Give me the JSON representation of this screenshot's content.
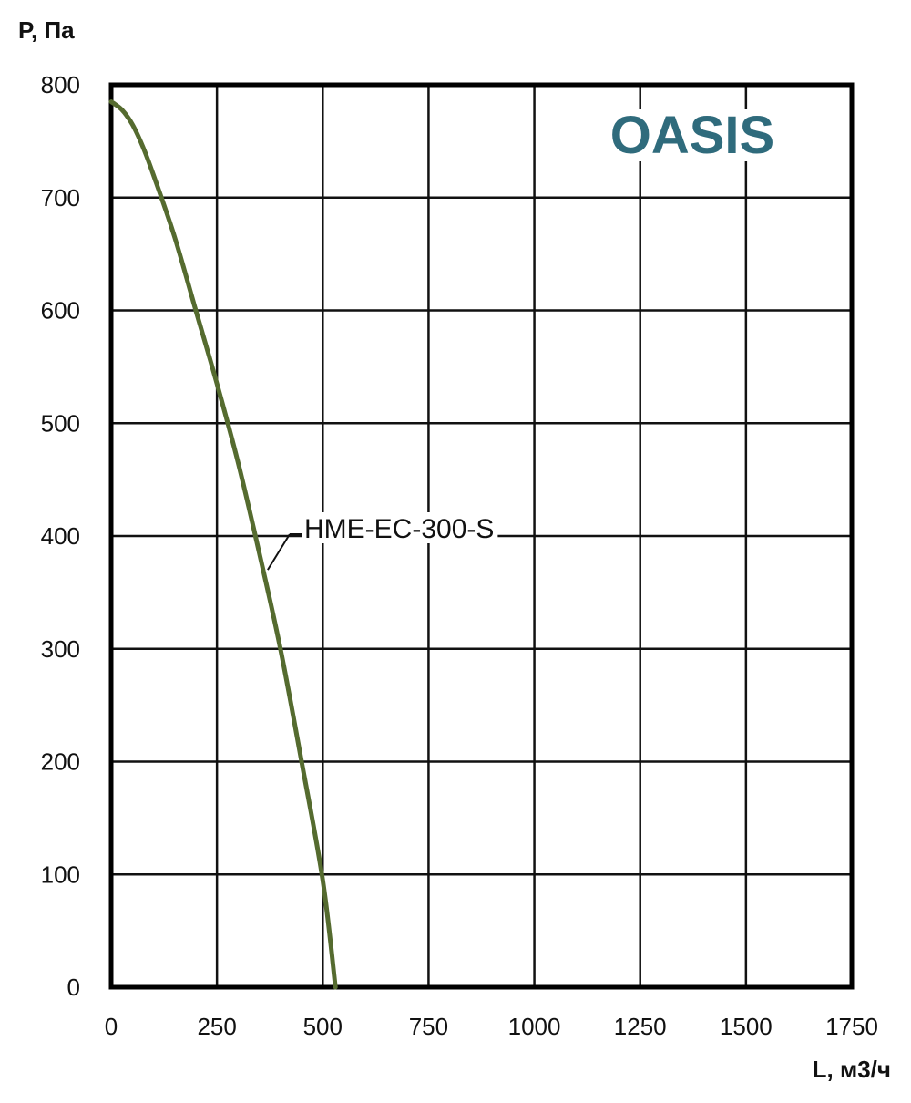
{
  "chart_data": {
    "type": "line",
    "xlabel": "L, м3/ч",
    "ylabel": "P, Па",
    "xlim": [
      0,
      1750
    ],
    "ylim": [
      0,
      800
    ],
    "x_ticks": [
      0,
      250,
      500,
      750,
      1000,
      1250,
      1500,
      1750
    ],
    "y_ticks": [
      0,
      100,
      200,
      300,
      400,
      500,
      600,
      700,
      800
    ],
    "grid": true,
    "series": [
      {
        "name": "HME-EC-300-S",
        "color": "#556b2f",
        "x": [
          0,
          25,
          50,
          75,
          100,
          150,
          200,
          250,
          300,
          350,
          400,
          450,
          500,
          530
        ],
        "y": [
          785,
          778,
          765,
          745,
          720,
          665,
          600,
          535,
          465,
          385,
          300,
          200,
          95,
          0
        ]
      }
    ],
    "annotations": [
      {
        "text": "HME-EC-300-S",
        "x": 370,
        "y": 370
      }
    ]
  },
  "logo": {
    "text": "OASIS",
    "color": "#2f6b7c"
  }
}
